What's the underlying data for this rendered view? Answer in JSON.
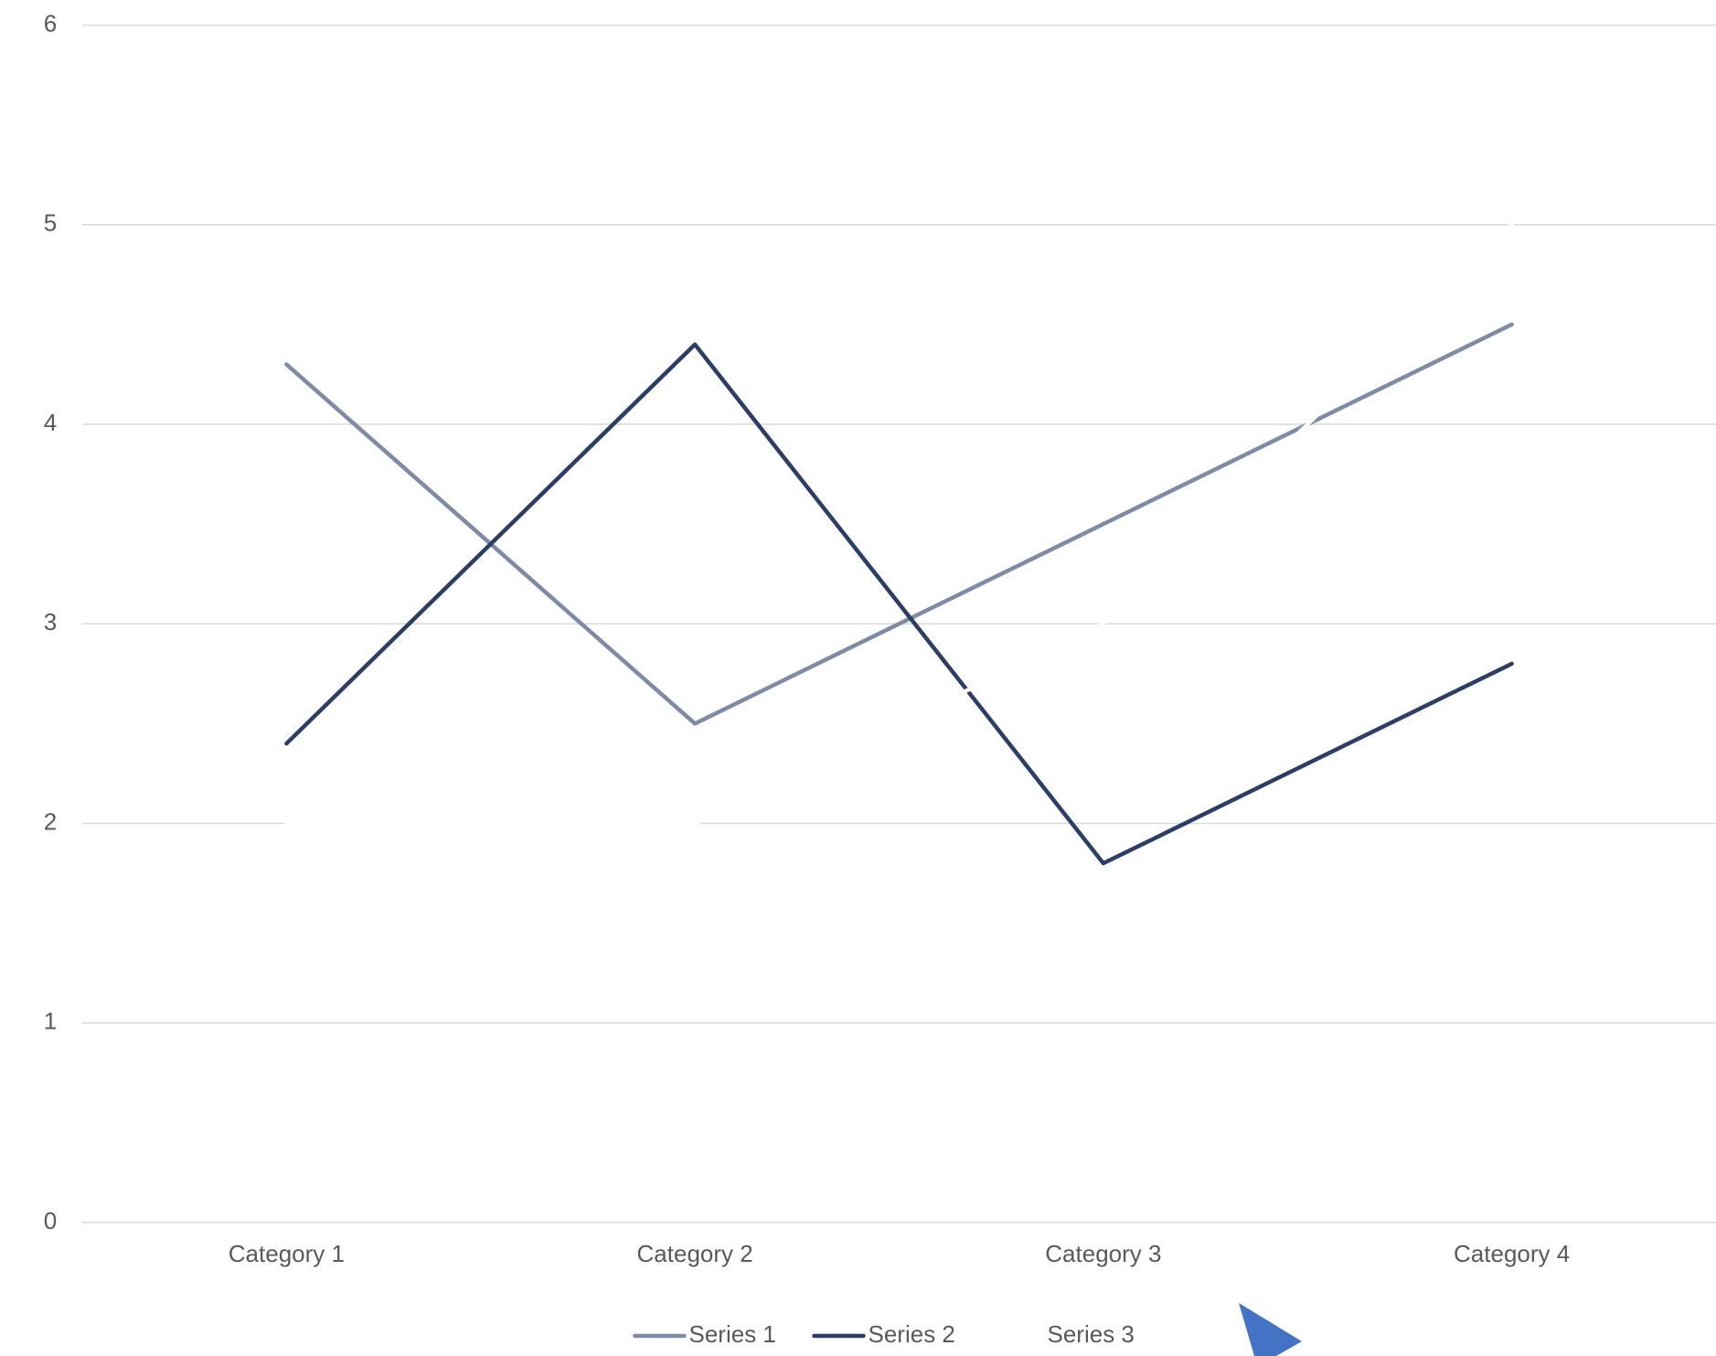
{
  "chart_data": {
    "type": "line",
    "categories": [
      "Category 1",
      "Category 2",
      "Category 3",
      "Category 4"
    ],
    "series": [
      {
        "name": "Series 1",
        "color": "#7f8ba5",
        "values": [
          4.3,
          2.5,
          3.5,
          4.5
        ]
      },
      {
        "name": "Series 2",
        "color": "#2c3e66",
        "values": [
          2.4,
          4.4,
          1.8,
          2.8
        ]
      },
      {
        "name": "Series 3",
        "color": "#ffffff",
        "values": [
          2,
          2,
          3,
          5
        ]
      }
    ],
    "ylim": [
      0,
      6
    ],
    "yticks": [
      0,
      1,
      2,
      3,
      4,
      5,
      6
    ],
    "grid": true,
    "legend": "bottom"
  }
}
